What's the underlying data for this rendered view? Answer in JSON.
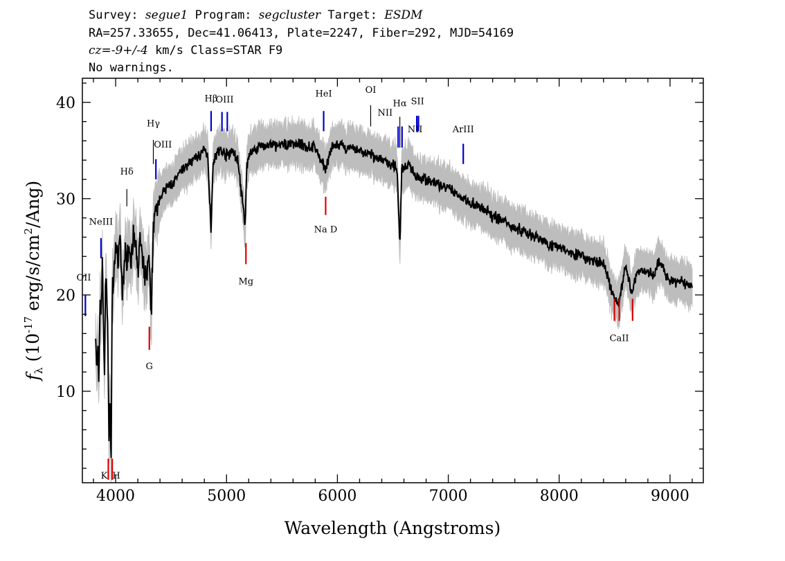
{
  "header": {
    "survey_label": "Survey:",
    "survey": "segue1",
    "program_label": "Program:",
    "program": "segcluster",
    "target_label": "Target:",
    "target": "ESDM",
    "line2": "RA=257.33655, Dec=41.06413, Plate=2247, Fiber=292, MJD=54169",
    "cz_label": "cz=",
    "cz_value": "-9+/-4",
    "cz_rest": " km/s Class=STAR F9",
    "line4": "No warnings."
  },
  "chart_data": {
    "type": "line",
    "xlabel": "Wavelength (Angstroms)",
    "ylabel": "f_λ (10^-17 erg/s/cm^2/Ang)",
    "xlim": [
      3700,
      9300
    ],
    "ylim": [
      0.5,
      42.5
    ],
    "x_ticks": [
      4000,
      5000,
      6000,
      7000,
      8000,
      9000
    ],
    "y_ticks": [
      10,
      20,
      30,
      40
    ],
    "grid": false,
    "colors": {
      "flux": "#000000",
      "error": "#bdbdbd",
      "emission_line": "#0000cc",
      "absorption_line": "#dd0000",
      "marker": "#000000"
    },
    "series": [
      {
        "kind": "flux",
        "x": [
          3820,
          3830,
          3840,
          3850,
          3860,
          3870,
          3880,
          3890,
          3900,
          3910,
          3920,
          3930,
          3940,
          3950,
          3960,
          3970,
          3980,
          3990,
          4000,
          4020,
          4040,
          4060,
          4080,
          4100,
          4120,
          4140,
          4160,
          4180,
          4200,
          4220,
          4240,
          4260,
          4280,
          4300,
          4320,
          4340,
          4360,
          4380,
          4400,
          4450,
          4500,
          4550,
          4600,
          4650,
          4700,
          4750,
          4800,
          4830,
          4860,
          4880,
          4900,
          4950,
          5000,
          5050,
          5100,
          5140,
          5170,
          5180,
          5200,
          5250,
          5300,
          5400,
          5500,
          5600,
          5700,
          5800,
          5890,
          5950,
          6000,
          6100,
          6200,
          6300,
          6400,
          6500,
          6540,
          6563,
          6580,
          6650,
          6700,
          6800,
          6900,
          7000,
          7100,
          7200,
          7300,
          7400,
          7500,
          7600,
          7700,
          7800,
          7900,
          8000,
          8100,
          8200,
          8300,
          8400,
          8498,
          8542,
          8600,
          8662,
          8700,
          8800,
          8850,
          8900,
          9000,
          9100,
          9200
        ],
        "y": [
          16,
          12,
          14,
          10,
          20,
          18,
          24,
          17,
          12,
          22,
          20,
          16,
          5,
          8,
          4,
          22,
          20,
          24,
          25,
          23,
          26,
          20,
          24,
          24,
          25,
          24,
          26,
          25,
          22,
          26,
          24,
          22,
          22,
          24,
          17,
          28,
          28,
          30,
          30,
          31,
          31.5,
          32,
          33,
          33.5,
          34,
          34.5,
          35,
          34.5,
          27,
          34,
          34.5,
          35,
          34.5,
          35,
          34,
          30,
          27,
          33,
          34.5,
          35,
          35.5,
          35.5,
          35.5,
          35.8,
          35.5,
          35.3,
          33,
          35.3,
          35.5,
          35.2,
          35,
          34.5,
          34,
          33.5,
          33,
          25,
          33,
          33.5,
          32.5,
          32,
          31.5,
          31,
          30.3,
          29.6,
          29,
          28.2,
          27.7,
          27,
          26.5,
          26,
          25.3,
          25,
          24.5,
          24,
          23.5,
          23.2,
          19.5,
          19.5,
          23,
          20,
          22.5,
          22.5,
          22,
          23.5,
          21.5,
          21.3,
          21
        ]
      }
    ],
    "lines": [
      {
        "label": "OII",
        "x": 3727,
        "type": "emission"
      },
      {
        "label": "NeIII",
        "x": 3868,
        "type": "emission"
      },
      {
        "label": "Hδ",
        "x": 4101,
        "type": "marker"
      },
      {
        "label": "Hγ",
        "x": 4340,
        "type": "marker"
      },
      {
        "label": "OIII",
        "x": 4363,
        "type": "emission"
      },
      {
        "label": "Hβ",
        "x": 4861,
        "type": "emission"
      },
      {
        "label": "OIII",
        "x": 4959,
        "type": "emission"
      },
      {
        "label": "OIII",
        "x": 5007,
        "type": "emission"
      },
      {
        "label": "HeI",
        "x": 5876,
        "type": "emission"
      },
      {
        "label": "OI",
        "x": 6300,
        "type": "marker"
      },
      {
        "label": "NII",
        "x": 6548,
        "type": "emission"
      },
      {
        "label": "Hα",
        "x": 6563,
        "type": "marker"
      },
      {
        "label": "NII",
        "x": 6583,
        "type": "emission"
      },
      {
        "label": "SII",
        "x": 6716,
        "type": "emission"
      },
      {
        "label": "SII",
        "x": 6731,
        "type": "emission"
      },
      {
        "label": "ArIII",
        "x": 7135,
        "type": "emission"
      },
      {
        "label": "K",
        "x": 3934,
        "type": "absorption"
      },
      {
        "label": "H",
        "x": 3969,
        "type": "absorption"
      },
      {
        "label": "G",
        "x": 4304,
        "type": "absorption"
      },
      {
        "label": "Mg",
        "x": 5175,
        "type": "absorption"
      },
      {
        "label": "Na D",
        "x": 5894,
        "type": "absorption"
      },
      {
        "label": "CaII",
        "x": 8498,
        "type": "absorption"
      },
      {
        "label": "CaII",
        "x": 8542,
        "type": "absorption"
      },
      {
        "label": "CaII",
        "x": 8662,
        "type": "absorption"
      }
    ]
  }
}
